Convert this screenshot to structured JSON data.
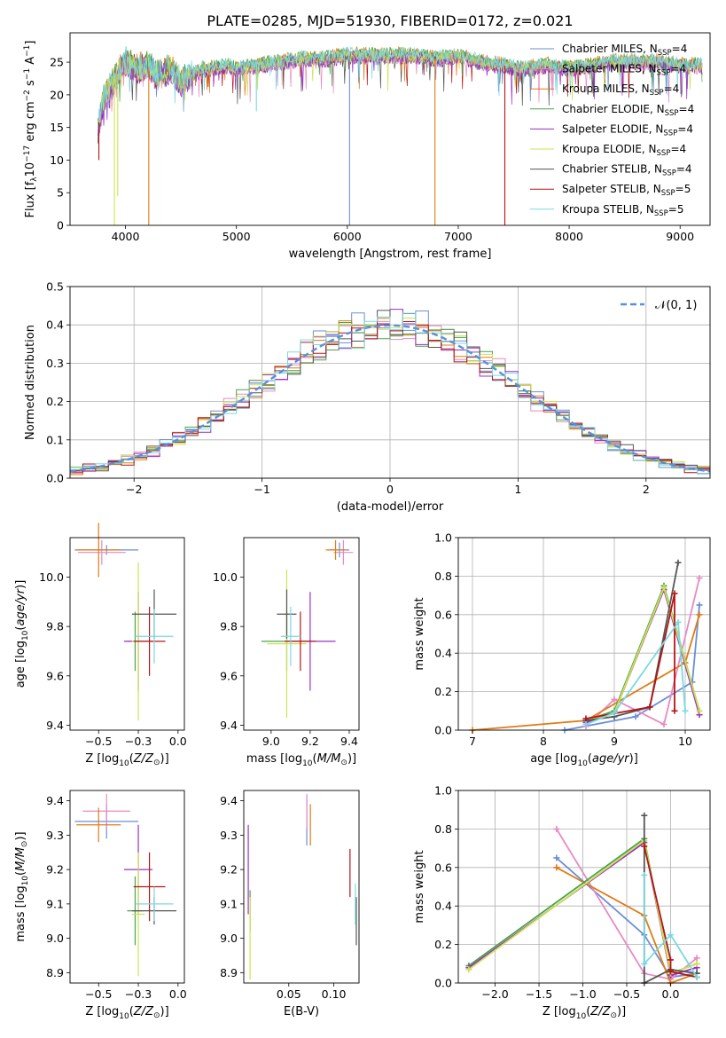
{
  "figure": {
    "title": "PLATE=0285, MJD=51930, FIBERID=0172, z=0.021"
  },
  "colors": {
    "Chabrier MILES": "#6a8fd6",
    "Salpeter MILES": "#e78bc3",
    "Kroupa MILES": "#e07b16",
    "Chabrier ELODIE": "#4aa34a",
    "Salpeter ELODIE": "#9b2fc4",
    "Kroupa ELODIE": "#cde34e",
    "Chabrier STELIB": "#555555",
    "Salpeter STELIB": "#b51515",
    "Kroupa STELIB": "#7ad9e0",
    "gaussian": "#5b8fd9",
    "grid": "#b0b0b0"
  },
  "chart_data": [
    {
      "id": "spectrum",
      "type": "line",
      "xlabel": "wavelength [Angstrom, rest frame]",
      "ylabel": "Flux [f_λ10^-17 erg cm^-2 s^-1 A^-1]",
      "xlim": [
        3500,
        9270
      ],
      "ylim": [
        0,
        29.5
      ],
      "xticks": [
        4000,
        5000,
        6000,
        7000,
        8000,
        9000
      ],
      "yticks": [
        0,
        5,
        10,
        15,
        20,
        25
      ],
      "grid": false,
      "legend_position": "right",
      "profile": {
        "x": [
          3750,
          3800,
          3850,
          3900,
          3950,
          4000,
          4100,
          4200,
          4300,
          4400,
          4500,
          4600,
          4700,
          4800,
          4900,
          5000,
          5200,
          5400,
          5600,
          5800,
          6000,
          6200,
          6400,
          6600,
          6800,
          7000,
          7200,
          7400,
          7600,
          7800,
          8000,
          8200,
          8400,
          8600,
          8800,
          9000,
          9200
        ],
        "y": [
          15,
          19,
          21,
          22,
          24,
          25,
          24,
          24.5,
          23,
          24,
          22,
          23,
          24,
          24,
          24.5,
          24,
          24.5,
          25,
          25.5,
          25.5,
          26,
          26,
          26,
          26,
          25.5,
          26,
          25,
          24.5,
          24,
          24.5,
          24,
          24.5,
          25,
          25,
          25,
          24.5,
          24.5
        ]
      },
      "dips": [
        {
          "x": 3900,
          "y": 0,
          "series": "Kroupa ELODIE"
        },
        {
          "x": 4210,
          "y": 0,
          "series": "Kroupa MILES"
        },
        {
          "x": 6020,
          "y": 0,
          "series": "Chabrier MILES"
        },
        {
          "x": 6790,
          "y": 0,
          "series": "Kroupa MILES"
        },
        {
          "x": 7420,
          "y": 0,
          "series": "Salpeter STELIB"
        },
        {
          "x": 3760,
          "y": 10,
          "series": "Salpeter STELIB"
        },
        {
          "x": 3930,
          "y": 4.5,
          "series": "Kroupa ELODIE"
        },
        {
          "x": 5180,
          "y": 17.5,
          "series": "Kroupa STELIB"
        }
      ],
      "series": [
        {
          "name": "Chabrier MILES, N_SSP=4",
          "key": "Chabrier MILES"
        },
        {
          "name": "Salpeter MILES, N_SSP=4",
          "key": "Salpeter MILES"
        },
        {
          "name": "Kroupa MILES, N_SSP=4",
          "key": "Kroupa MILES"
        },
        {
          "name": "Chabrier ELODIE, N_SSP=4",
          "key": "Chabrier ELODIE"
        },
        {
          "name": "Salpeter ELODIE, N_SSP=4",
          "key": "Salpeter ELODIE"
        },
        {
          "name": "Kroupa ELODIE, N_SSP=4",
          "key": "Kroupa ELODIE"
        },
        {
          "name": "Chabrier STELIB, N_SSP=4",
          "key": "Chabrier STELIB"
        },
        {
          "name": "Salpeter STELIB, N_SSP=5",
          "key": "Salpeter STELIB"
        },
        {
          "name": "Kroupa STELIB, N_SSP=5",
          "key": "Kroupa STELIB"
        }
      ]
    },
    {
      "id": "residuals",
      "type": "line",
      "xlabel": "(data-model)/error",
      "ylabel": "Normed distribution",
      "xlim": [
        -2.5,
        2.5
      ],
      "ylim": [
        0,
        0.5
      ],
      "xticks": [
        -2,
        -1,
        0,
        1,
        2
      ],
      "yticks": [
        0.0,
        0.1,
        0.2,
        0.3,
        0.4,
        0.5
      ],
      "grid": true,
      "legend_position": "top-right",
      "legend": [
        {
          "name": "𝒩(0, 1)",
          "style": "dashed"
        }
      ],
      "bin_width": 0.1
    },
    {
      "id": "age_vs_Z",
      "type": "scatter",
      "xlabel": "Z [log10(Z/Z⊙)]",
      "ylabel": "age [log10(age/yr)]",
      "xlim": [
        -0.68,
        0.04
      ],
      "ylim": [
        9.38,
        10.16
      ],
      "xticks": [
        -0.5,
        -0.25,
        0.0
      ],
      "yticks": [
        9.4,
        9.6,
        9.8,
        10.0
      ],
      "points": [
        {
          "series": "Chabrier MILES",
          "x": -0.45,
          "y": 10.11,
          "xerr": 0.2,
          "yerr": 0.02
        },
        {
          "series": "Salpeter MILES",
          "x": -0.48,
          "y": 10.1,
          "xerr": 0.15,
          "yerr": 0.05
        },
        {
          "series": "Kroupa MILES",
          "x": -0.5,
          "y": 10.11,
          "xerr": 0.14,
          "yerr": 0.11
        },
        {
          "series": "Chabrier ELODIE",
          "x": -0.27,
          "y": 9.74,
          "xerr": 0.05,
          "yerr": 0.12
        },
        {
          "series": "Salpeter ELODIE",
          "x": -0.25,
          "y": 9.74,
          "xerr": 0.09,
          "yerr": 0.2
        },
        {
          "series": "Kroupa ELODIE",
          "x": -0.25,
          "y": 9.74,
          "xerr": 0.04,
          "yerr": 0.32
        },
        {
          "series": "Chabrier STELIB",
          "x": -0.15,
          "y": 9.85,
          "xerr": 0.14,
          "yerr": 0.1
        },
        {
          "series": "Salpeter STELIB",
          "x": -0.18,
          "y": 9.74,
          "xerr": 0.1,
          "yerr": 0.14
        },
        {
          "series": "Kroupa STELIB",
          "x": -0.15,
          "y": 9.76,
          "xerr": 0.12,
          "yerr": 0.11
        }
      ]
    },
    {
      "id": "age_vs_mass",
      "type": "scatter",
      "xlabel": "mass [log10(M/M⊙)]",
      "ylabel": "",
      "xlim": [
        8.86,
        9.45
      ],
      "ylim": [
        9.38,
        10.16
      ],
      "xticks": [
        9.0,
        9.2,
        9.4
      ],
      "yticks": [
        9.4,
        9.6,
        9.8,
        10.0
      ],
      "points": [
        {
          "series": "Chabrier MILES",
          "x": 9.35,
          "y": 10.11,
          "xerr": 0.05,
          "yerr": 0.03
        },
        {
          "series": "Salpeter MILES",
          "x": 9.37,
          "y": 10.1,
          "xerr": 0.05,
          "yerr": 0.05
        },
        {
          "series": "Kroupa MILES",
          "x": 9.33,
          "y": 10.11,
          "xerr": 0.05,
          "yerr": 0.04
        },
        {
          "series": "Chabrier ELODIE",
          "x": 9.08,
          "y": 9.74,
          "xerr": 0.13,
          "yerr": 0.12
        },
        {
          "series": "Salpeter ELODIE",
          "x": 9.2,
          "y": 9.74,
          "xerr": 0.13,
          "yerr": 0.2
        },
        {
          "series": "Kroupa ELODIE",
          "x": 9.08,
          "y": 9.73,
          "xerr": 0.1,
          "yerr": 0.3
        },
        {
          "series": "Chabrier STELIB",
          "x": 9.08,
          "y": 9.85,
          "xerr": 0.05,
          "yerr": 0.1
        },
        {
          "series": "Salpeter STELIB",
          "x": 9.15,
          "y": 9.74,
          "xerr": 0.08,
          "yerr": 0.12
        },
        {
          "series": "Kroupa STELIB",
          "x": 9.1,
          "y": 9.76,
          "xerr": 0.05,
          "yerr": 0.12
        }
      ]
    },
    {
      "id": "mass_weight_vs_age",
      "type": "line",
      "xlabel": "age [log10(age/yr)]",
      "ylabel": "mass weight",
      "xlim": [
        6.8,
        10.35
      ],
      "ylim": [
        0,
        1.0
      ],
      "xticks": [
        7,
        8,
        9,
        10
      ],
      "yticks": [
        0.0,
        0.2,
        0.4,
        0.6,
        0.8,
        1.0
      ],
      "grid": true,
      "series": [
        {
          "key": "Chabrier MILES",
          "x": [
            8.3,
            9.3,
            10.1,
            10.2
          ],
          "y": [
            0.0,
            0.07,
            0.25,
            0.65
          ]
        },
        {
          "key": "Salpeter MILES",
          "x": [
            8.6,
            9.0,
            9.7,
            10.2
          ],
          "y": [
            0.02,
            0.16,
            0.03,
            0.79
          ]
        },
        {
          "key": "Kroupa MILES",
          "x": [
            7.0,
            8.6,
            10.0,
            10.2
          ],
          "y": [
            0.0,
            0.05,
            0.35,
            0.6
          ]
        },
        {
          "key": "Chabrier ELODIE",
          "x": [
            8.6,
            9.0,
            9.7,
            10.2
          ],
          "y": [
            0.05,
            0.1,
            0.75,
            0.1
          ]
        },
        {
          "key": "Salpeter ELODIE",
          "x": [
            8.6,
            9.0,
            9.7,
            10.2
          ],
          "y": [
            0.04,
            0.09,
            0.73,
            0.08
          ]
        },
        {
          "key": "Kroupa ELODIE",
          "x": [
            8.6,
            9.0,
            9.7,
            10.2
          ],
          "y": [
            0.05,
            0.09,
            0.74,
            0.1
          ]
        },
        {
          "key": "Chabrier STELIB",
          "x": [
            8.6,
            9.0,
            9.5,
            9.9
          ],
          "y": [
            0.05,
            0.07,
            0.12,
            0.87
          ]
        },
        {
          "key": "Salpeter STELIB",
          "x": [
            8.6,
            9.5,
            9.85,
            9.85
          ],
          "y": [
            0.06,
            0.12,
            0.71,
            0.1
          ]
        },
        {
          "key": "Kroupa STELIB",
          "x": [
            8.6,
            9.0,
            9.9,
            10.0
          ],
          "y": [
            0.03,
            0.09,
            0.56,
            0.1
          ]
        }
      ]
    },
    {
      "id": "mass_vs_Z",
      "type": "scatter",
      "xlabel": "Z [log10(Z/Z⊙)]",
      "ylabel": "mass [log10(M/M⊙)]",
      "xlim": [
        -0.68,
        0.04
      ],
      "ylim": [
        8.87,
        9.43
      ],
      "xticks": [
        -0.5,
        -0.25,
        0.0
      ],
      "yticks": [
        8.9,
        9.0,
        9.1,
        9.2,
        9.3,
        9.4
      ],
      "points": [
        {
          "series": "Chabrier MILES",
          "x": -0.45,
          "y": 9.34,
          "xerr": 0.2,
          "yerr": 0.05
        },
        {
          "series": "Salpeter MILES",
          "x": -0.45,
          "y": 9.37,
          "xerr": 0.15,
          "yerr": 0.05
        },
        {
          "series": "Kroupa MILES",
          "x": -0.5,
          "y": 9.33,
          "xerr": 0.14,
          "yerr": 0.05
        },
        {
          "series": "Chabrier ELODIE",
          "x": -0.27,
          "y": 9.08,
          "xerr": 0.05,
          "yerr": 0.1
        },
        {
          "series": "Salpeter ELODIE",
          "x": -0.25,
          "y": 9.2,
          "xerr": 0.09,
          "yerr": 0.13
        },
        {
          "series": "Kroupa ELODIE",
          "x": -0.25,
          "y": 9.07,
          "xerr": 0.04,
          "yerr": 0.18
        },
        {
          "series": "Chabrier STELIB",
          "x": -0.15,
          "y": 9.08,
          "xerr": 0.14,
          "yerr": 0.04
        },
        {
          "series": "Salpeter STELIB",
          "x": -0.18,
          "y": 9.15,
          "xerr": 0.1,
          "yerr": 0.1
        },
        {
          "series": "Kroupa STELIB",
          "x": -0.15,
          "y": 9.1,
          "xerr": 0.12,
          "yerr": 0.05
        }
      ]
    },
    {
      "id": "mass_vs_ebv",
      "type": "scatter",
      "xlabel": "E(B-V)",
      "ylabel": "",
      "xlim": [
        0.0,
        0.128
      ],
      "ylim": [
        8.87,
        9.43
      ],
      "xticks": [
        0.05,
        0.1
      ],
      "yticks": [
        8.9,
        9.0,
        9.1,
        9.2,
        9.3,
        9.4
      ],
      "points": [
        {
          "series": "Chabrier MILES",
          "x": 0.07,
          "y": 9.34,
          "xerr": 0,
          "yerr": 0.07
        },
        {
          "series": "Salpeter MILES",
          "x": 0.07,
          "y": 9.37,
          "xerr": 0,
          "yerr": 0.05
        },
        {
          "series": "Kroupa MILES",
          "x": 0.074,
          "y": 9.33,
          "xerr": 0,
          "yerr": 0.06
        },
        {
          "series": "Chabrier ELODIE",
          "x": 0.007,
          "y": 9.08,
          "xerr": 0,
          "yerr": 0.06
        },
        {
          "series": "Salpeter ELODIE",
          "x": 0.005,
          "y": 9.2,
          "xerr": 0,
          "yerr": 0.13
        },
        {
          "series": "Kroupa ELODIE",
          "x": 0.007,
          "y": 9.0,
          "xerr": 0,
          "yerr": 0.12
        },
        {
          "series": "Chabrier STELIB",
          "x": 0.125,
          "y": 9.05,
          "xerr": 0,
          "yerr": 0.07
        },
        {
          "series": "Salpeter STELIB",
          "x": 0.118,
          "y": 9.19,
          "xerr": 0,
          "yerr": 0.07
        },
        {
          "series": "Kroupa STELIB",
          "x": 0.124,
          "y": 9.1,
          "xerr": 0,
          "yerr": 0.06
        }
      ]
    },
    {
      "id": "mass_weight_vs_Z",
      "type": "line",
      "xlabel": "Z [log10(Z/Z⊙)]",
      "ylabel": "mass weight",
      "xlim": [
        -2.42,
        0.45
      ],
      "ylim": [
        0,
        1.0
      ],
      "xticks": [
        -2.0,
        -1.5,
        -1.0,
        -0.5,
        0.0
      ],
      "yticks": [
        0.0,
        0.2,
        0.4,
        0.6,
        0.8,
        1.0
      ],
      "grid": true,
      "series": [
        {
          "key": "Chabrier MILES",
          "x": [
            -1.3,
            -0.3,
            0.0,
            0.3
          ],
          "y": [
            0.65,
            0.25,
            0.03,
            0.05
          ]
        },
        {
          "key": "Salpeter MILES",
          "x": [
            -1.3,
            -0.3,
            0.0,
            0.3
          ],
          "y": [
            0.8,
            0.05,
            0.02,
            0.13
          ]
        },
        {
          "key": "Kroupa MILES",
          "x": [
            -1.3,
            -0.3,
            0.0,
            0.3
          ],
          "y": [
            0.6,
            0.35,
            0.0,
            0.05
          ]
        },
        {
          "key": "Chabrier ELODIE",
          "x": [
            -2.3,
            -0.3,
            0.0,
            0.3
          ],
          "y": [
            0.09,
            0.75,
            0.05,
            0.1
          ]
        },
        {
          "key": "Salpeter ELODIE",
          "x": [
            -2.3,
            -0.3,
            0.0,
            0.3
          ],
          "y": [
            0.08,
            0.73,
            0.04,
            0.08
          ]
        },
        {
          "key": "Kroupa ELODIE",
          "x": [
            -2.3,
            -0.3,
            0.0,
            0.3
          ],
          "y": [
            0.07,
            0.74,
            0.05,
            0.1
          ]
        },
        {
          "key": "Chabrier STELIB",
          "x": [
            -0.3,
            -0.3,
            0.0,
            0.3
          ],
          "y": [
            0.87,
            0.0,
            0.07,
            0.05
          ]
        },
        {
          "key": "Salpeter STELIB",
          "x": [
            -0.3,
            0.0,
            0.0,
            0.3
          ],
          "y": [
            0.71,
            0.12,
            0.06,
            0.03
          ]
        },
        {
          "key": "Kroupa STELIB",
          "x": [
            -0.3,
            -0.3,
            0.0,
            0.3
          ],
          "y": [
            0.56,
            0.1,
            0.25,
            0.03
          ]
        }
      ]
    }
  ]
}
